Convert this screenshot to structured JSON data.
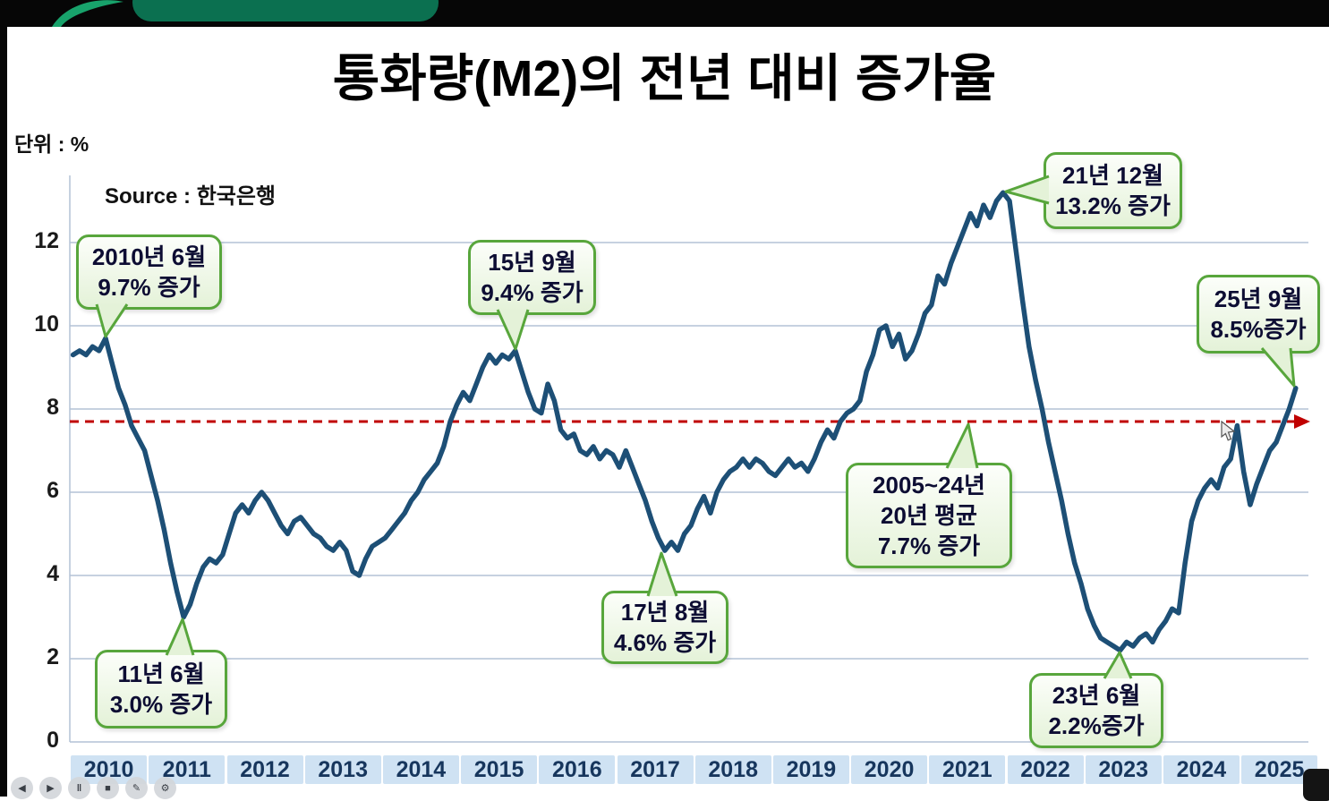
{
  "chart_data": {
    "type": "line",
    "title": "통화량(M2)의 전년 대비 증가율",
    "unit_label": "단위 : %",
    "source": "Source : 한국은행",
    "y_ticks": [
      0,
      2,
      4,
      6,
      8,
      10,
      12
    ],
    "ylim": [
      0,
      14
    ],
    "grid": true,
    "x_tick_labels": [
      "2010",
      "2011",
      "2012",
      "2013",
      "2014",
      "2015",
      "2016",
      "2017",
      "2018",
      "2019",
      "2020",
      "2021",
      "2022",
      "2023",
      "2024",
      "2025"
    ],
    "series": [
      {
        "name": "M2 전년 대비 증가율(%)",
        "start": "2010-01",
        "frequency": "monthly",
        "values": [
          9.3,
          9.4,
          9.3,
          9.5,
          9.4,
          9.7,
          9.1,
          8.5,
          8.1,
          7.6,
          7.3,
          7.0,
          6.4,
          5.8,
          5.1,
          4.3,
          3.6,
          3.0,
          3.3,
          3.8,
          4.2,
          4.4,
          4.3,
          4.5,
          5.0,
          5.5,
          5.7,
          5.5,
          5.8,
          6.0,
          5.8,
          5.5,
          5.2,
          5.0,
          5.3,
          5.4,
          5.2,
          5.0,
          4.9,
          4.7,
          4.6,
          4.8,
          4.6,
          4.1,
          4.0,
          4.4,
          4.7,
          4.8,
          4.9,
          5.1,
          5.3,
          5.5,
          5.8,
          6.0,
          6.3,
          6.5,
          6.7,
          7.1,
          7.7,
          8.1,
          8.4,
          8.2,
          8.6,
          9.0,
          9.3,
          9.1,
          9.3,
          9.2,
          9.4,
          8.9,
          8.4,
          8.0,
          7.9,
          8.6,
          8.2,
          7.5,
          7.3,
          7.4,
          7.0,
          6.9,
          7.1,
          6.8,
          7.0,
          6.9,
          6.6,
          7.0,
          6.6,
          6.2,
          5.8,
          5.3,
          4.9,
          4.6,
          4.8,
          4.6,
          5.0,
          5.2,
          5.6,
          5.9,
          5.5,
          6.0,
          6.3,
          6.5,
          6.6,
          6.8,
          6.6,
          6.8,
          6.7,
          6.5,
          6.4,
          6.6,
          6.8,
          6.6,
          6.7,
          6.5,
          6.8,
          7.2,
          7.5,
          7.3,
          7.7,
          7.9,
          8.0,
          8.2,
          8.9,
          9.3,
          9.9,
          10.0,
          9.5,
          9.8,
          9.2,
          9.4,
          9.8,
          10.3,
          10.5,
          11.2,
          11.0,
          11.5,
          11.9,
          12.3,
          12.7,
          12.4,
          12.9,
          12.6,
          13.0,
          13.2,
          13.0,
          11.8,
          10.6,
          9.5,
          8.7,
          8.0,
          7.2,
          6.5,
          5.8,
          5.0,
          4.3,
          3.8,
          3.2,
          2.8,
          2.5,
          2.4,
          2.3,
          2.2,
          2.4,
          2.3,
          2.5,
          2.6,
          2.4,
          2.7,
          2.9,
          3.2,
          3.1,
          4.3,
          5.3,
          5.8,
          6.1,
          6.3,
          6.1,
          6.6,
          6.8,
          7.6,
          6.5,
          5.7,
          6.2,
          6.6,
          7.0,
          7.2,
          7.6,
          8.0,
          8.5
        ]
      }
    ],
    "reference_line": {
      "value": 7.7,
      "style": "dashed",
      "color": "#c00000",
      "label": "2005~24년 20년 평균 7.7% 증가"
    },
    "annotations": [
      {
        "id": "2010-06",
        "lines": [
          "2010년 6월",
          "9.7% 증가"
        ],
        "x": "2010-06",
        "value": 9.7
      },
      {
        "id": "2011-06",
        "lines": [
          "11년 6월",
          "3.0% 증가"
        ],
        "x": "2011-06",
        "value": 3.0
      },
      {
        "id": "2015-09",
        "lines": [
          "15년 9월",
          "9.4% 증가"
        ],
        "x": "2015-09",
        "value": 9.4
      },
      {
        "id": "2017-08",
        "lines": [
          "17년 8월",
          "4.6% 증가"
        ],
        "x": "2017-08",
        "value": 4.6
      },
      {
        "id": "average",
        "lines": [
          "2005~24년",
          "20년 평균",
          "7.7% 증가"
        ],
        "value": 7.7
      },
      {
        "id": "2021-12",
        "lines": [
          "21년 12월",
          "13.2% 증가"
        ],
        "x": "2021-12",
        "value": 13.2
      },
      {
        "id": "2023-06",
        "lines": [
          "23년 6월",
          "2.2%증가"
        ],
        "x": "2023-06",
        "value": 2.2
      },
      {
        "id": "2025-09",
        "lines": [
          "25년 9월",
          "8.5%증가"
        ],
        "x": "2025-09",
        "value": 8.5
      }
    ],
    "colors": {
      "line": "#1d4f76",
      "grid": "#b3c2d6",
      "x_label_bg": "#cfe2f3",
      "x_label_text": "#17365d",
      "callout_border": "#58a63c",
      "callout_bg": "#e4f2d8",
      "reference": "#c00000"
    }
  },
  "player": {
    "controls": [
      {
        "name": "previous",
        "glyph": "◀"
      },
      {
        "name": "next",
        "glyph": "▶"
      },
      {
        "name": "pause",
        "glyph": "‖"
      },
      {
        "name": "stop",
        "glyph": "■"
      },
      {
        "name": "pen",
        "glyph": "✎"
      },
      {
        "name": "settings",
        "glyph": "⚙"
      }
    ]
  }
}
